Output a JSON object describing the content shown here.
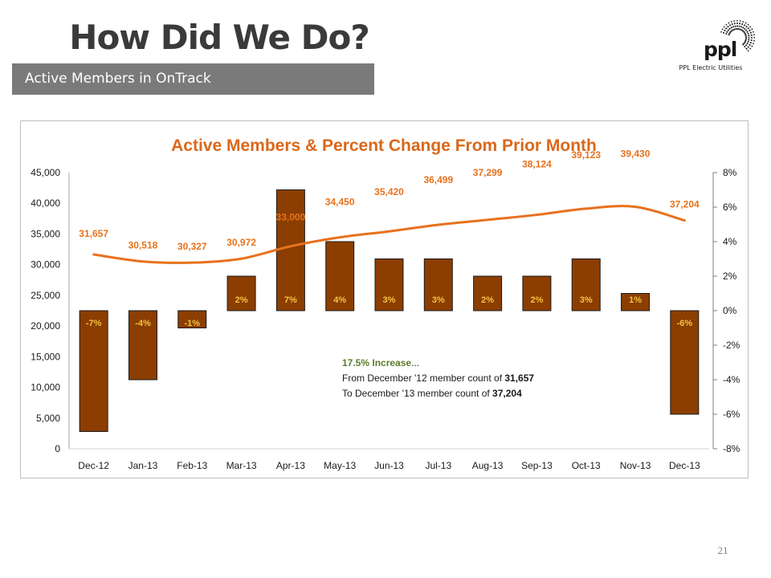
{
  "slide": {
    "title": "How Did We Do?",
    "subtitle": "Active Members in OnTrack",
    "page_number": "21"
  },
  "logo": {
    "mark": "ppl",
    "company": "PPL Electric Utilities",
    "icon": "sunburst-logo-icon"
  },
  "colors": {
    "bar": "#8b3e00",
    "bar_border": "#1a1a1a",
    "line": "#e8711c",
    "title": "#d9681a",
    "bar_label": "#f5c242",
    "annotation_head": "#5c7b2a",
    "grey_bar": "#7a7a7a"
  },
  "chart_data": {
    "type": "bar",
    "title": "Active Members & Percent Change From Prior Month",
    "categories": [
      "Dec-12",
      "Jan-13",
      "Feb-13",
      "Mar-13",
      "Apr-13",
      "May-13",
      "Jun-13",
      "Jul-13",
      "Aug-13",
      "Sep-13",
      "Oct-13",
      "Nov-13",
      "Dec-13"
    ],
    "series": [
      {
        "axis": "left",
        "kind": "line",
        "values": [
          31657,
          30518,
          30327,
          30972,
          33000,
          34450,
          35420,
          36499,
          37299,
          38124,
          39123,
          39430,
          37204
        ],
        "labels": [
          "31,657",
          "30,518",
          "30,327",
          "30,972",
          "33,000",
          "34,450",
          "35,420",
          "36,499",
          "37,299",
          "38,124",
          "39,123",
          "39,430",
          "37,204"
        ]
      },
      {
        "axis": "right",
        "kind": "bar",
        "values": [
          -7,
          -4,
          -1,
          2,
          7,
          4,
          3,
          3,
          2,
          2,
          3,
          1,
          -6
        ],
        "labels": [
          "-7%",
          "-4%",
          "-1%",
          "2%",
          "7%",
          "4%",
          "3%",
          "3%",
          "2%",
          "2%",
          "3%",
          "1%",
          "-6%"
        ]
      }
    ],
    "y_left": {
      "ylim": [
        0,
        45000
      ],
      "ticks": [
        "0",
        "5,000",
        "10,000",
        "15,000",
        "20,000",
        "25,000",
        "30,000",
        "35,000",
        "40,000",
        "45,000"
      ]
    },
    "y_right": {
      "ylim": [
        -8,
        8
      ],
      "ticks": [
        "-8%",
        "-6%",
        "-4%",
        "-2%",
        "0%",
        "2%",
        "4%",
        "6%",
        "8%"
      ]
    },
    "annotation": {
      "heading": "17.5% Increase",
      "heading_suffix": "...",
      "line1_prefix": "From December '12 member count of ",
      "line1_value": "31,657",
      "line2_prefix": "To December '13 member count of ",
      "line2_value": "37,204"
    },
    "grid": false,
    "legend": "none"
  }
}
